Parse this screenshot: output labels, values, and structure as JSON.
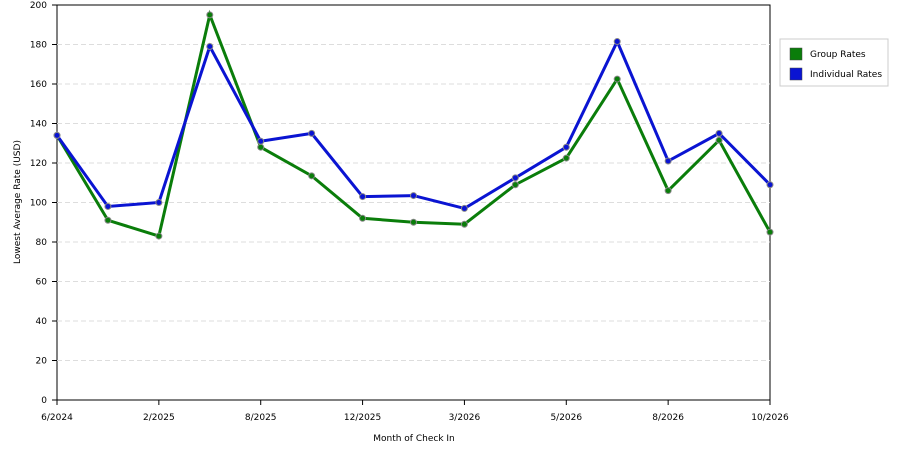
{
  "chart_data": {
    "type": "line",
    "x_label": "Month of Check In",
    "y_label": "Lowest Average Rate (USD)",
    "categories": [
      "6/2024",
      null,
      "2/2025",
      null,
      "8/2025",
      null,
      "12/2025",
      null,
      "3/2026",
      null,
      "5/2026",
      null,
      "8/2026",
      null,
      "10/2026"
    ],
    "series": [
      {
        "name": "Group Rates",
        "color": "#0a7d0a",
        "values": [
          134,
          91,
          83,
          195,
          128,
          113.5,
          92,
          90,
          89,
          109,
          122.5,
          162.5,
          106,
          131.5,
          85
        ]
      },
      {
        "name": "Individual Rates",
        "color": "#0a14d2",
        "values": [
          134,
          98,
          100,
          179,
          131,
          135,
          103,
          103.5,
          97,
          112.5,
          128,
          181.5,
          121,
          135,
          109
        ]
      }
    ],
    "ylim": [
      0,
      200
    ],
    "yticks": [
      0,
      20,
      40,
      60,
      80,
      100,
      120,
      140,
      160,
      180,
      200
    ],
    "grid": true,
    "legend": "right"
  }
}
